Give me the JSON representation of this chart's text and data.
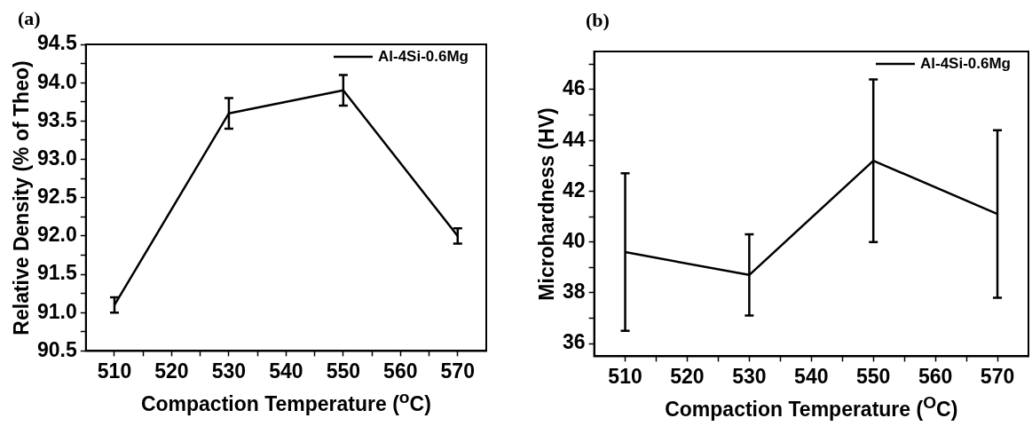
{
  "chart_data": [
    {
      "type": "line",
      "title": "(a)",
      "xlabel": "Compaction Temperature ($^{o}$C)",
      "ylabel": "Relative Density (% of Theo)",
      "x": [
        510,
        530,
        550,
        570
      ],
      "series": [
        {
          "name": "Al-4Si-0.6Mg",
          "color": "#000000",
          "values": [
            91.1,
            93.6,
            93.9,
            92.0
          ],
          "errors": [
            0.1,
            0.2,
            0.2,
            0.1
          ]
        }
      ],
      "xlim": [
        505,
        575
      ],
      "xticks": [
        510,
        {
          "value": 515,
          "label": null
        },
        520,
        {
          "value": 525,
          "label": null
        },
        530,
        {
          "value": 535,
          "label": null
        },
        540,
        {
          "value": 545,
          "label": null
        },
        550,
        {
          "value": 555,
          "label": null
        },
        560,
        {
          "value": 565,
          "label": null
        },
        570
      ],
      "ylim": [
        90.5,
        94.5
      ],
      "yticks": [
        {
          "value": 90.5,
          "label": "90.5"
        },
        {
          "value": 90.75,
          "label": null
        },
        {
          "value": 91,
          "label": "91.0"
        },
        {
          "value": 91.25,
          "label": null
        },
        {
          "value": 91.5,
          "label": "91.5"
        },
        {
          "value": 91.75,
          "label": null
        },
        {
          "value": 92,
          "label": "92.0"
        },
        {
          "value": 92.25,
          "label": null
        },
        {
          "value": 92.5,
          "label": "92.5"
        },
        {
          "value": 92.75,
          "label": null
        },
        {
          "value": 93,
          "label": "93.0"
        },
        {
          "value": 93.25,
          "label": null
        },
        {
          "value": 93.5,
          "label": "93.5"
        },
        {
          "value": 93.75,
          "label": null
        },
        {
          "value": 94,
          "label": "94.0"
        },
        {
          "value": 94.25,
          "label": null
        },
        {
          "value": 94.5,
          "label": "94.5"
        }
      ],
      "grid": false,
      "legend": "top right",
      "line_style": "solid"
    },
    {
      "type": "line",
      "title": "(b)",
      "xlabel": "Compaction Temperature ($^{O}$C)",
      "ylabel": "Microhardness (HV)",
      "x": [
        510,
        530,
        550,
        570
      ],
      "series": [
        {
          "name": "Al-4Si-0.6Mg",
          "color": "#000000",
          "values": [
            39.6,
            38.7,
            43.2,
            41.1
          ],
          "errors": [
            [
              36.5,
              42.7
            ],
            [
              37.1,
              40.3
            ],
            [
              40.0,
              46.4
            ],
            [
              37.8,
              44.4
            ]
          ]
        }
      ],
      "xlim": [
        505,
        575
      ],
      "xticks": [
        510,
        {
          "value": 515,
          "label": null
        },
        520,
        {
          "value": 525,
          "label": null
        },
        530,
        {
          "value": 535,
          "label": null
        },
        540,
        {
          "value": 545,
          "label": null
        },
        550,
        {
          "value": 555,
          "label": null
        },
        560,
        {
          "value": 565,
          "label": null
        },
        570
      ],
      "ylim": [
        35.5,
        47.5
      ],
      "yticks": [
        36,
        {
          "value": 37,
          "label": null
        },
        38,
        {
          "value": 39,
          "label": null
        },
        40,
        {
          "value": 41,
          "label": null
        },
        42,
        {
          "value": 43,
          "label": null
        },
        44,
        {
          "value": 45,
          "label": null
        },
        46,
        {
          "value": 47,
          "label": null
        }
      ],
      "grid": false,
      "legend": "top right",
      "line_style": "solid"
    }
  ]
}
